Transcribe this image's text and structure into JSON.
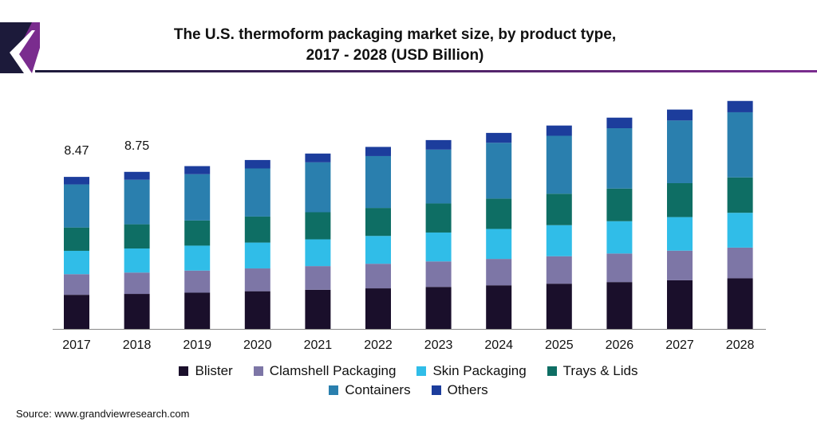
{
  "header": {
    "title_line1": "The U.S. thermoform packaging market size, by product type,",
    "title_line2": "2017 - 2028 (USD Billion)"
  },
  "source": "Source: www.grandviewresearch.com",
  "colors": {
    "logo_dark": "#1c1a3a",
    "logo_purple": "#7a2c8e",
    "rule_start": "#1c1a3a",
    "rule_end": "#7a2c8e"
  },
  "chart_data": {
    "type": "bar",
    "stacked": true,
    "title": "The U.S. thermoform packaging market size, by product type, 2017 - 2028 (USD Billion)",
    "categories": [
      "2017",
      "2018",
      "2019",
      "2020",
      "2021",
      "2022",
      "2023",
      "2024",
      "2025",
      "2026",
      "2027",
      "2028"
    ],
    "series": [
      {
        "name": "Blister",
        "color": "#1a0f2b",
        "values": [
          1.9,
          1.95,
          2.02,
          2.1,
          2.18,
          2.26,
          2.34,
          2.43,
          2.52,
          2.61,
          2.71,
          2.82
        ]
      },
      {
        "name": "Clamshell Packaging",
        "color": "#7d76a6",
        "values": [
          1.15,
          1.19,
          1.23,
          1.27,
          1.32,
          1.37,
          1.42,
          1.47,
          1.53,
          1.59,
          1.65,
          1.71
        ]
      },
      {
        "name": "Skin Packaging",
        "color": "#30bde8",
        "values": [
          1.3,
          1.34,
          1.39,
          1.44,
          1.49,
          1.55,
          1.61,
          1.67,
          1.73,
          1.8,
          1.87,
          1.94
        ]
      },
      {
        "name": "Trays & Lids",
        "color": "#0e6e64",
        "values": [
          1.3,
          1.35,
          1.4,
          1.45,
          1.51,
          1.56,
          1.62,
          1.69,
          1.75,
          1.82,
          1.89,
          1.97
        ]
      },
      {
        "name": "Containers",
        "color": "#2a7fae",
        "values": [
          2.4,
          2.48,
          2.58,
          2.68,
          2.78,
          2.89,
          3.0,
          3.11,
          3.23,
          3.36,
          3.49,
          3.63
        ]
      },
      {
        "name": "Others",
        "color": "#1c3d9c",
        "values": [
          0.42,
          0.44,
          0.45,
          0.47,
          0.49,
          0.51,
          0.53,
          0.55,
          0.57,
          0.59,
          0.61,
          0.63
        ]
      }
    ],
    "data_labels": [
      {
        "category": "2017",
        "text": "8.47"
      },
      {
        "category": "2018",
        "text": "8.75"
      }
    ],
    "ylim": [
      0,
      13
    ],
    "xlabel": "",
    "ylabel": "",
    "grid": false,
    "legend_position": "bottom"
  }
}
